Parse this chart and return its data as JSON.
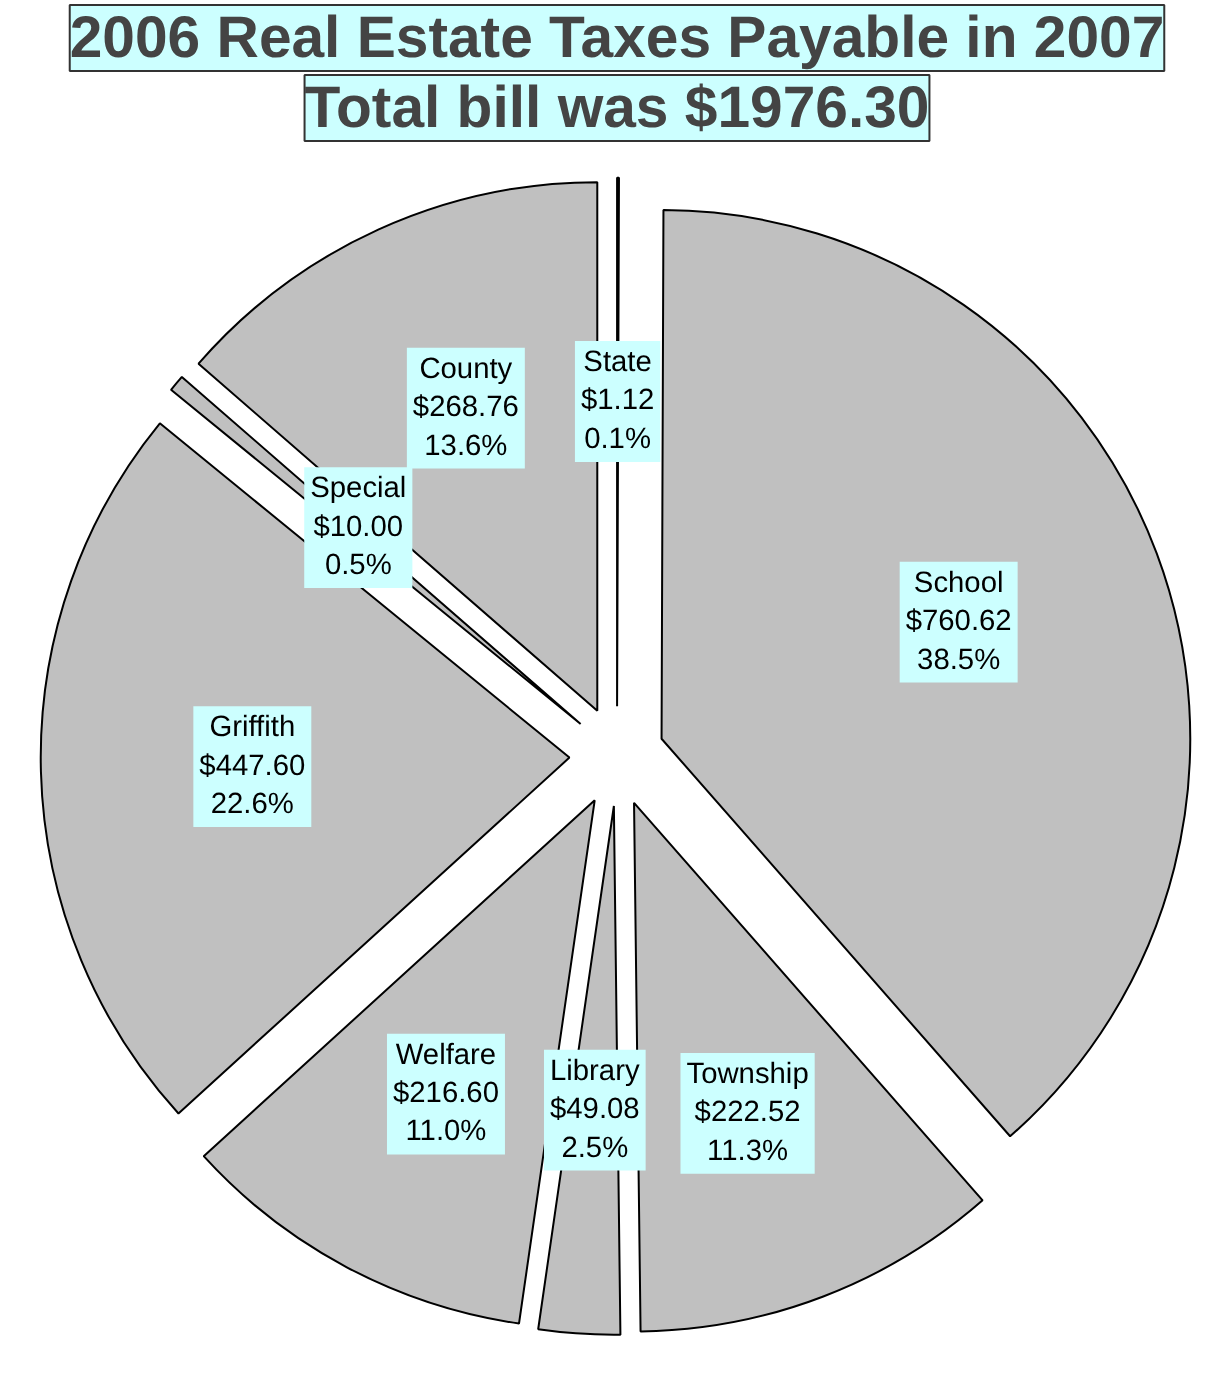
{
  "chart_data": {
    "type": "pie",
    "title": "2006 Real Estate Taxes Payable in 2007",
    "subtitle": "Total bill was $1976.30",
    "categories": [
      "State",
      "School",
      "Township",
      "Library",
      "Welfare",
      "Griffith",
      "Special",
      "County"
    ],
    "values": [
      1.12,
      760.62,
      222.52,
      49.08,
      216.6,
      447.6,
      10.0,
      268.76
    ],
    "colors": [
      "#c0c0c0",
      "#c0c0c0",
      "#c0c0c0",
      "#c0c0c0",
      "#c0c0c0",
      "#c0c0c0",
      "#c0c0c0",
      "#c0c0c0"
    ],
    "value_labels": [
      "$1.12\n0.1%",
      "$760.62\n38.5%",
      "$222.52\n11.3%",
      "$49.08\n2.5%",
      "$216.60\n11.0%",
      "$447.60\n22.6%",
      "$10.00\n0.5%",
      "$268.76\n13.6%"
    ]
  }
}
